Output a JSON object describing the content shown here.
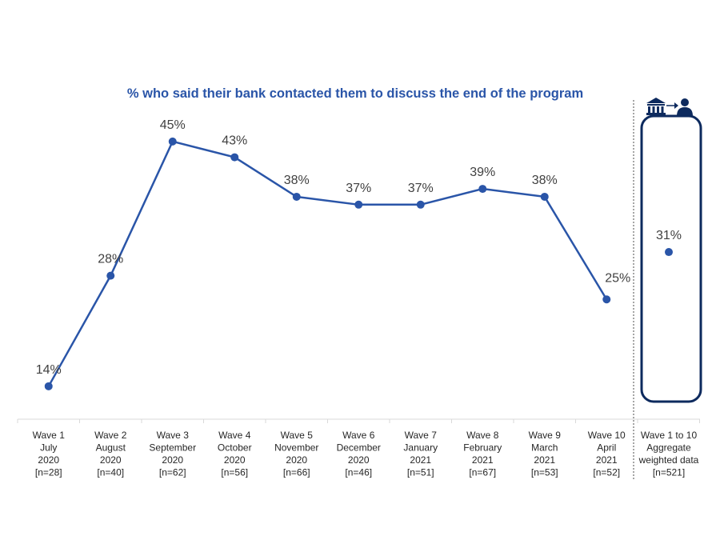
{
  "chart_data": {
    "type": "line",
    "title": "% who said their bank contacted them to discuss the end of the program",
    "categories": [
      [
        "Wave 1",
        "July",
        "2020",
        "[n=28]"
      ],
      [
        "Wave 2",
        "August",
        "2020",
        "[n=40]"
      ],
      [
        "Wave 3",
        "September",
        "2020",
        "[n=62]"
      ],
      [
        "Wave 4",
        "October",
        "2020",
        "[n=56]"
      ],
      [
        "Wave 5",
        "November",
        "2020",
        "[n=66]"
      ],
      [
        "Wave 6",
        "December",
        "2020",
        "[n=46]"
      ],
      [
        "Wave 7",
        "January",
        "2021",
        "[n=51]"
      ],
      [
        "Wave 8",
        "February",
        "2021",
        "[n=67]"
      ],
      [
        "Wave 9",
        "March",
        "2021",
        "[n=53]"
      ],
      [
        "Wave 10",
        "April",
        "2021",
        "[n=52]"
      ]
    ],
    "values": [
      14,
      28,
      45,
      43,
      38,
      37,
      37,
      39,
      38,
      25
    ],
    "labels": [
      "14%",
      "28%",
      "45%",
      "43%",
      "38%",
      "37%",
      "37%",
      "39%",
      "38%",
      "25%"
    ],
    "aggregate": {
      "category": [
        "Wave 1 to 10",
        "Aggregate",
        "weighted data",
        "[n=521]"
      ],
      "value": 31,
      "label": "31%",
      "icon": "bank-to-person-icon"
    },
    "line_color": "#2a55a8",
    "box_color": "#0d2a5e",
    "grid": false
  }
}
